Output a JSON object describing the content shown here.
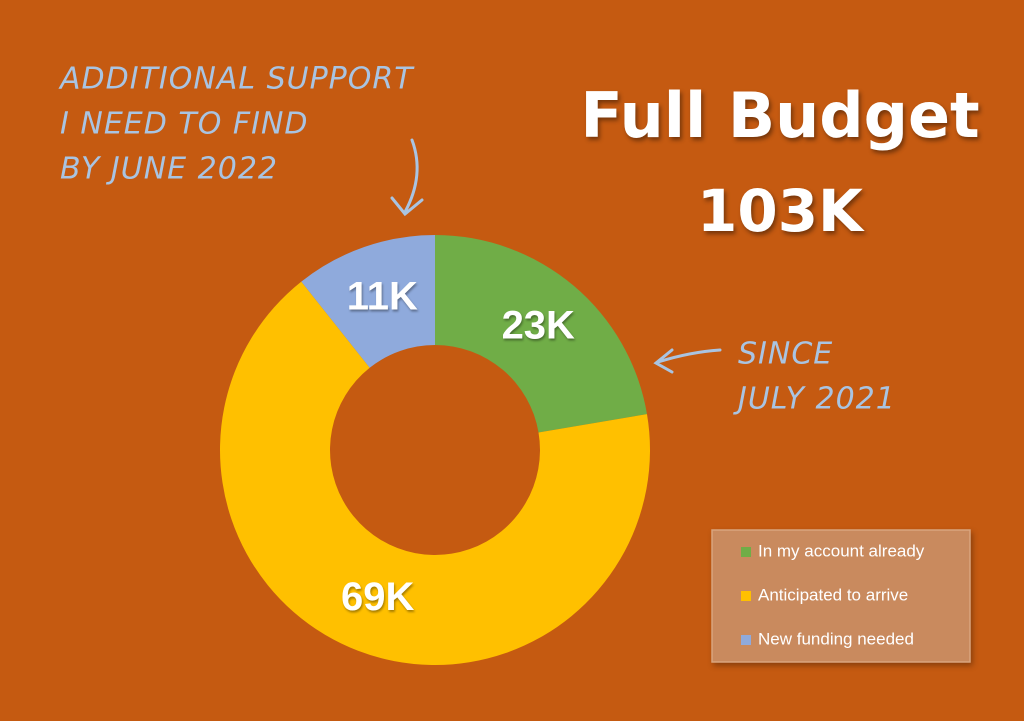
{
  "chart_data": {
    "type": "donut",
    "title": "Full Budget",
    "subtitle": "103K",
    "categories": [
      "In my account already",
      "Anticipated to arrive",
      "New funding needed"
    ],
    "values": [
      23,
      69,
      11
    ],
    "value_labels": [
      "23K",
      "69K",
      "11K"
    ],
    "colors": [
      "#70ad47",
      "#ffc000",
      "#8faadc"
    ],
    "legend": "bottom-right",
    "annotations": [
      {
        "lines": [
          "ADDITIONAL SUPPORT",
          "I NEED TO FIND",
          "BY JUNE 2022"
        ]
      },
      {
        "lines": [
          "SINCE",
          "JULY 2021"
        ]
      }
    ]
  }
}
